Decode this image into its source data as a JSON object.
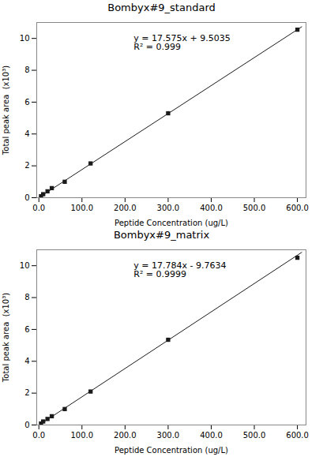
{
  "chart_data": [
    {
      "type": "scatter",
      "title": "Bombyx#9_standard",
      "x_label": "Peptide Concentration (ug/L)",
      "y_label": "Total peak area  (x10³)",
      "x": [
        5,
        10,
        20,
        30,
        60,
        120,
        300,
        600
      ],
      "values": [
        0.09,
        0.22,
        0.4,
        0.6,
        1.0,
        2.15,
        5.3,
        10.55
      ],
      "marker": "square",
      "color": "#1a1a1a",
      "fit_line": {
        "x": [
          0,
          610
        ],
        "values": [
          0.0095035,
          10.7302535
        ],
        "color": "#1a1a1a"
      },
      "annotations": [
        {
          "text": "y = 17.575x + 9.5035\nR² = 0.999",
          "x": 220,
          "y": 10.2
        }
      ],
      "xlim": [
        -5,
        620
      ],
      "ylim": [
        0,
        11
      ],
      "xticks": [
        {
          "value": 0,
          "label": "0.0"
        },
        {
          "value": 100,
          "label": "100.0"
        },
        {
          "value": 200,
          "label": "200.0"
        },
        {
          "value": 300,
          "label": "300.0"
        },
        {
          "value": 400,
          "label": "400.0"
        },
        {
          "value": 500,
          "label": "500.0"
        },
        {
          "value": 600,
          "label": "600.0"
        }
      ],
      "yticks": [
        0,
        2,
        4,
        6,
        8,
        10
      ],
      "grid": false
    },
    {
      "type": "scatter",
      "title": "Bombyx#9_matrix",
      "x_label": "Peptide Concentration (ug/L)",
      "y_label": "Total peak area  (x10³)",
      "x": [
        5,
        10,
        20,
        30,
        60,
        120,
        300,
        600
      ],
      "values": [
        0.09,
        0.22,
        0.38,
        0.55,
        1.0,
        2.1,
        5.35,
        10.5
      ],
      "marker": "square",
      "color": "#1a1a1a",
      "fit_line": {
        "x": [
          0,
          610
        ],
        "values": [
          -0.0097634,
          10.8384766
        ],
        "color": "#1a1a1a"
      },
      "annotations": [
        {
          "text": "y = 17.784x - 9.7634\nR² = 0.9999",
          "x": 220,
          "y": 10.2
        }
      ],
      "xlim": [
        -5,
        620
      ],
      "ylim": [
        0,
        11
      ],
      "xticks": [
        {
          "value": 0,
          "label": "0.0"
        },
        {
          "value": 100,
          "label": "100.0"
        },
        {
          "value": 200,
          "label": "200.0"
        },
        {
          "value": 300,
          "label": "300.0"
        },
        {
          "value": 400,
          "label": "400.0"
        },
        {
          "value": 500,
          "label": "500.0"
        },
        {
          "value": 600,
          "label": "600.0"
        }
      ],
      "yticks": [
        0,
        2,
        4,
        6,
        8,
        10
      ],
      "grid": false
    }
  ]
}
